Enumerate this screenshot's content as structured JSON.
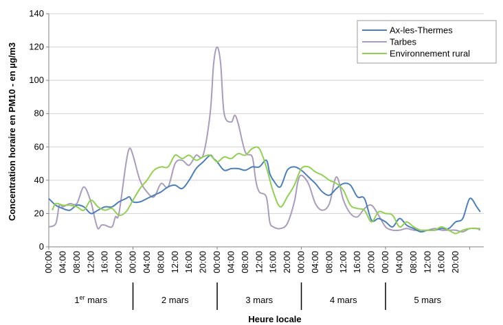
{
  "chart_data": {
    "type": "line",
    "xlabel": "Heure locale",
    "ylabel": "Concentration horaire en PM10 - en µg/m3",
    "ylim": [
      0,
      140
    ],
    "yticks": [
      "0",
      "20",
      "40",
      "60",
      "80",
      "100",
      "120",
      "140"
    ],
    "hour_tick_labels": [
      "00:00",
      "04:00",
      "08:00",
      "12:00",
      "16:00",
      "20:00"
    ],
    "days": [
      {
        "label": "1",
        "sup": "er",
        "rest": " mars"
      },
      {
        "label": "2 mars",
        "sup": "",
        "rest": ""
      },
      {
        "label": "3 mars",
        "sup": "",
        "rest": ""
      },
      {
        "label": "4 mars",
        "sup": "",
        "rest": ""
      },
      {
        "label": "5 mars",
        "sup": "",
        "rest": ""
      }
    ],
    "x_unit": "hours since 1er mars 00:00",
    "legend_position": "top-right",
    "grid": "horizontal",
    "series": [
      {
        "name": "Ax-les-Thermes",
        "color": "#4a7ebb",
        "points": [
          [
            0,
            29
          ],
          [
            2,
            25
          ],
          [
            4,
            23
          ],
          [
            6,
            22
          ],
          [
            8,
            25
          ],
          [
            10,
            24
          ],
          [
            12,
            20
          ],
          [
            14,
            22
          ],
          [
            16,
            24
          ],
          [
            18,
            24
          ],
          [
            20,
            27
          ],
          [
            22,
            29
          ],
          [
            23,
            30
          ],
          [
            24,
            27
          ],
          [
            26,
            27
          ],
          [
            28,
            29
          ],
          [
            30,
            31
          ],
          [
            32,
            33
          ],
          [
            34,
            36
          ],
          [
            36,
            37
          ],
          [
            38,
            35
          ],
          [
            40,
            40
          ],
          [
            42,
            47
          ],
          [
            44,
            51
          ],
          [
            46,
            55
          ],
          [
            47,
            53
          ],
          [
            48,
            51
          ],
          [
            50,
            46
          ],
          [
            52,
            47
          ],
          [
            54,
            47
          ],
          [
            56,
            46
          ],
          [
            58,
            48
          ],
          [
            60,
            48
          ],
          [
            62,
            52
          ],
          [
            63,
            44
          ],
          [
            64,
            40
          ],
          [
            66,
            36
          ],
          [
            68,
            46
          ],
          [
            70,
            48
          ],
          [
            72,
            46
          ],
          [
            74,
            42
          ],
          [
            76,
            38
          ],
          [
            78,
            33
          ],
          [
            80,
            31
          ],
          [
            82,
            35
          ],
          [
            84,
            38
          ],
          [
            86,
            37
          ],
          [
            88,
            30
          ],
          [
            90,
            29
          ],
          [
            92,
            16
          ],
          [
            94,
            17
          ],
          [
            96,
            15
          ],
          [
            98,
            12
          ],
          [
            100,
            17
          ],
          [
            102,
            13
          ],
          [
            104,
            11
          ],
          [
            106,
            9
          ],
          [
            108,
            10
          ],
          [
            110,
            10
          ],
          [
            112,
            11
          ],
          [
            114,
            11
          ],
          [
            116,
            15
          ],
          [
            118,
            17
          ],
          [
            120,
            29
          ],
          [
            122,
            24
          ],
          [
            123,
            21
          ]
        ]
      },
      {
        "name": "Tarbes",
        "color": "#a99bbd",
        "points": [
          [
            0,
            12
          ],
          [
            2,
            14
          ],
          [
            3,
            25
          ],
          [
            4,
            24
          ],
          [
            6,
            26
          ],
          [
            8,
            26
          ],
          [
            10,
            36
          ],
          [
            12,
            27
          ],
          [
            13,
            18
          ],
          [
            14,
            11
          ],
          [
            15,
            13
          ],
          [
            16,
            13
          ],
          [
            18,
            12
          ],
          [
            19,
            18
          ],
          [
            20,
            20
          ],
          [
            22,
            50
          ],
          [
            23,
            59
          ],
          [
            24,
            55
          ],
          [
            26,
            40
          ],
          [
            28,
            33
          ],
          [
            30,
            30
          ],
          [
            32,
            38
          ],
          [
            34,
            36
          ],
          [
            36,
            50
          ],
          [
            38,
            52
          ],
          [
            40,
            49
          ],
          [
            42,
            55
          ],
          [
            44,
            55
          ],
          [
            46,
            80
          ],
          [
            47,
            110
          ],
          [
            48,
            120
          ],
          [
            49,
            110
          ],
          [
            50,
            80
          ],
          [
            52,
            75
          ],
          [
            53,
            79
          ],
          [
            54,
            74
          ],
          [
            56,
            57
          ],
          [
            58,
            54
          ],
          [
            59,
            40
          ],
          [
            60,
            33
          ],
          [
            62,
            30
          ],
          [
            63,
            15
          ],
          [
            64,
            12
          ],
          [
            66,
            11
          ],
          [
            68,
            14
          ],
          [
            70,
            27
          ],
          [
            71,
            39
          ],
          [
            72,
            43
          ],
          [
            74,
            38
          ],
          [
            76,
            26
          ],
          [
            78,
            22
          ],
          [
            80,
            26
          ],
          [
            82,
            42
          ],
          [
            84,
            28
          ],
          [
            86,
            20
          ],
          [
            88,
            18
          ],
          [
            90,
            23
          ],
          [
            92,
            25
          ],
          [
            94,
            19
          ],
          [
            96,
            12
          ],
          [
            98,
            10
          ],
          [
            100,
            10
          ],
          [
            102,
            11
          ],
          [
            104,
            10
          ],
          [
            106,
            10
          ],
          [
            108,
            10
          ],
          [
            110,
            11
          ],
          [
            112,
            10
          ],
          [
            114,
            10
          ],
          [
            116,
            10
          ],
          [
            118,
            9
          ],
          [
            120,
            11
          ],
          [
            122,
            11
          ],
          [
            123,
            10
          ]
        ]
      },
      {
        "name": "Environnement rural",
        "color": "#8fd14f",
        "points": [
          [
            1,
            22
          ],
          [
            2,
            26
          ],
          [
            4,
            25
          ],
          [
            6,
            25
          ],
          [
            8,
            24
          ],
          [
            10,
            22
          ],
          [
            12,
            28
          ],
          [
            14,
            24
          ],
          [
            16,
            22
          ],
          [
            18,
            23
          ],
          [
            20,
            19
          ],
          [
            22,
            21
          ],
          [
            24,
            28
          ],
          [
            26,
            35
          ],
          [
            28,
            40
          ],
          [
            30,
            46
          ],
          [
            32,
            48
          ],
          [
            34,
            48
          ],
          [
            36,
            55
          ],
          [
            38,
            53
          ],
          [
            40,
            55
          ],
          [
            42,
            52
          ],
          [
            44,
            54
          ],
          [
            46,
            55
          ],
          [
            48,
            51
          ],
          [
            50,
            54
          ],
          [
            52,
            53
          ],
          [
            54,
            56
          ],
          [
            56,
            55
          ],
          [
            58,
            59
          ],
          [
            60,
            59
          ],
          [
            62,
            48
          ],
          [
            64,
            33
          ],
          [
            66,
            24
          ],
          [
            68,
            30
          ],
          [
            70,
            37
          ],
          [
            72,
            47
          ],
          [
            74,
            48
          ],
          [
            76,
            45
          ],
          [
            78,
            43
          ],
          [
            80,
            40
          ],
          [
            82,
            38
          ],
          [
            84,
            34
          ],
          [
            86,
            25
          ],
          [
            88,
            23
          ],
          [
            90,
            22
          ],
          [
            92,
            15
          ],
          [
            94,
            21
          ],
          [
            96,
            20
          ],
          [
            98,
            19
          ],
          [
            100,
            12
          ],
          [
            102,
            15
          ],
          [
            104,
            12
          ],
          [
            106,
            10
          ],
          [
            108,
            10
          ],
          [
            110,
            10
          ],
          [
            112,
            12
          ],
          [
            114,
            10
          ],
          [
            116,
            8
          ],
          [
            118,
            10
          ],
          [
            120,
            11
          ],
          [
            122,
            11
          ],
          [
            123,
            11
          ]
        ]
      }
    ]
  }
}
